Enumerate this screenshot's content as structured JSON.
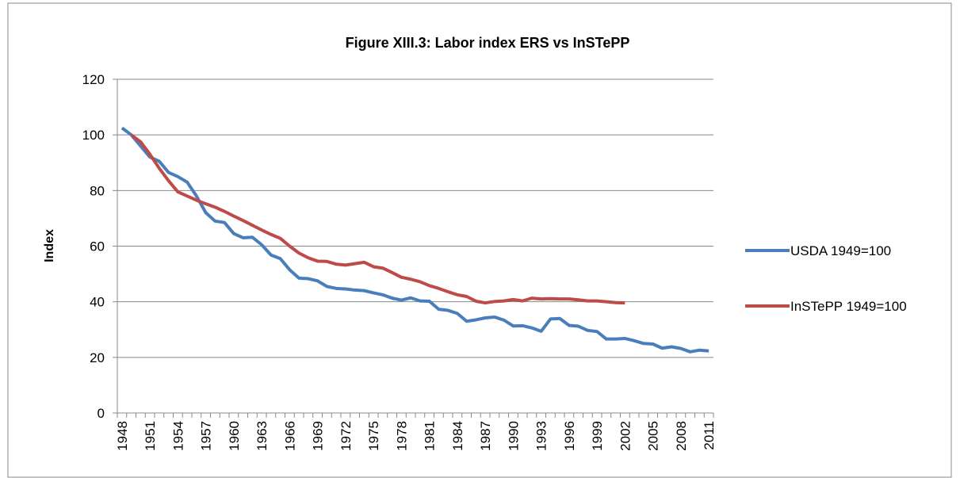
{
  "chart_data": {
    "type": "line",
    "title": "Figure XIII.3: Labor index ERS vs InSTePP",
    "y_label": "Index",
    "categories": [
      "1948",
      null,
      null,
      "1951",
      null,
      null,
      "1954",
      null,
      null,
      "1957",
      null,
      null,
      "1960",
      null,
      null,
      "1963",
      null,
      null,
      "1966",
      null,
      null,
      "1969",
      null,
      null,
      "1972",
      null,
      null,
      "1975",
      null,
      null,
      "1978",
      null,
      null,
      "1981",
      null,
      null,
      "1984",
      null,
      null,
      "1987",
      null,
      null,
      "1990",
      null,
      null,
      "1993",
      null,
      null,
      "1996",
      null,
      null,
      "1999",
      null,
      null,
      "2002",
      null,
      null,
      "2005",
      null,
      null,
      "2008",
      null,
      null,
      "2011"
    ],
    "series": [
      {
        "name": "USDA 1949=100",
        "color": "#4a7ebb",
        "values": [
          102.5,
          100,
          96,
          92,
          90.5,
          86.5,
          85,
          83,
          78,
          72,
          69,
          68.5,
          64.5,
          63,
          63.2,
          60.5,
          56.8,
          55.5,
          51.5,
          48.5,
          48.3,
          47.5,
          45.5,
          44.8,
          44.6,
          44.2,
          44,
          43.2,
          42.5,
          41.3,
          40.6,
          41.4,
          40.3,
          40.2,
          37.3,
          36.9,
          35.8,
          33,
          33.5,
          34.2,
          34.5,
          33.4,
          31.3,
          31.4,
          30.6,
          29.4,
          33.8,
          34,
          31.5,
          31.2,
          29.7,
          29.3,
          26.6,
          26.6,
          26.8,
          26,
          25,
          24.8,
          23.3,
          23.8,
          23.2,
          22,
          22.6,
          22.3
        ]
      },
      {
        "name": "InSTePP 1949=100",
        "color": "#be4b48",
        "values": [
          null,
          100,
          97.5,
          93,
          88,
          83.5,
          79.5,
          78,
          76.5,
          75.2,
          74,
          72.5,
          70.8,
          69.2,
          67.5,
          65.8,
          64.2,
          62.8,
          60,
          57.5,
          55.8,
          54.6,
          54.5,
          53.5,
          53.2,
          53.7,
          54.2,
          52.6,
          52.1,
          50.5,
          48.8,
          48.1,
          47.2,
          45.8,
          44.8,
          43.6,
          42.5,
          41.9,
          40.2,
          39.6,
          40.1,
          40.3,
          40.8,
          40.3,
          41.3,
          41,
          41.1,
          41,
          41,
          40.7,
          40.3,
          40.3,
          40,
          39.7,
          39.6,
          null,
          null,
          null,
          null,
          null,
          null,
          null,
          null,
          null
        ]
      }
    ],
    "ylim": [
      0,
      120
    ],
    "yticks": [
      0,
      20,
      40,
      60,
      80,
      100,
      120
    ],
    "grid": true,
    "legend": "right"
  }
}
